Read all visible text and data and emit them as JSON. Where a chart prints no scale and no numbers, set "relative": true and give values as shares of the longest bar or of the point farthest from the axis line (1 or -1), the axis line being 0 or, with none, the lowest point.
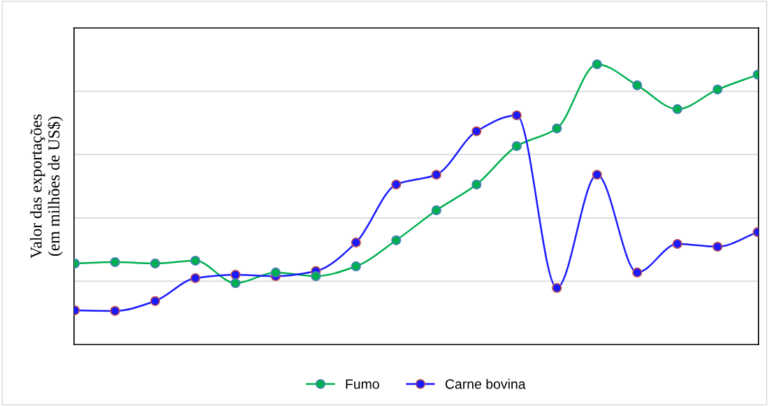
{
  "chart_data": {
    "type": "line",
    "relative": true,
    "ylabel": "Valor das exportações\n(em milhões de US$)",
    "categories": [
      null,
      null,
      null,
      null,
      null,
      null,
      null,
      null,
      null,
      null,
      null,
      null,
      null,
      null,
      null,
      null,
      null,
      null
    ],
    "series": [
      {
        "name": "Fumo",
        "color": "#00b050",
        "values": [
          0.289,
          0.294,
          0.289,
          0.299,
          0.219,
          0.257,
          0.244,
          0.279,
          0.372,
          0.479,
          0.571,
          0.708,
          0.771,
          1,
          0.925,
          0.84,
          0.91,
          0.963
        ]
      },
      {
        "name": "Carne bovina",
        "color": "#1a1aff",
        "values": [
          0.122,
          0.12,
          0.155,
          0.237,
          0.249,
          0.244,
          0.262,
          0.364,
          0.571,
          0.606,
          0.761,
          0.818,
          0.202,
          0.606,
          0.257,
          0.359,
          0.349,
          0.401
        ]
      }
    ],
    "grid": "y",
    "legend": "bottom",
    "marker": "circle",
    "line_style": "solid",
    "tick_labels": false
  }
}
